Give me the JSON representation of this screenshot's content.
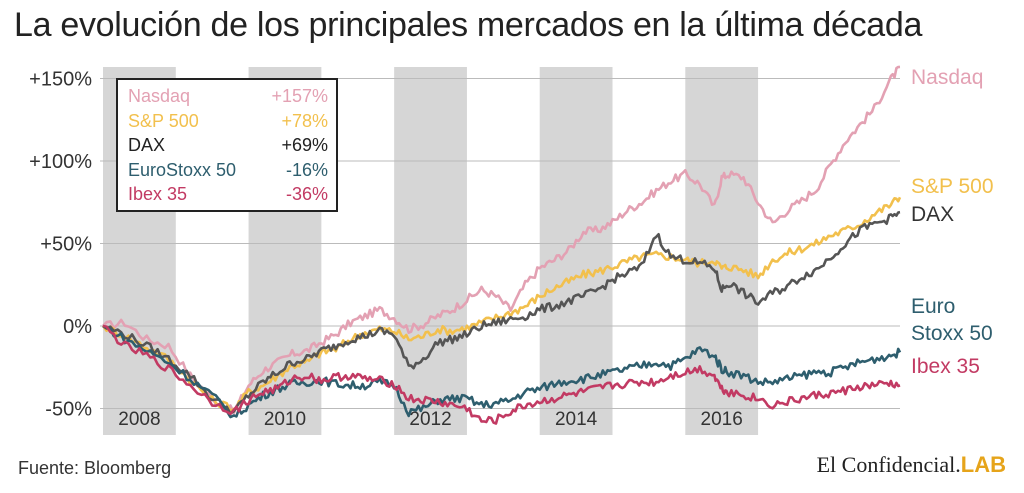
{
  "title": "La evolución de los principales mercados en la última década",
  "source": "Fuente: Bloomberg",
  "brand": {
    "name": "El Confidencial.",
    "suffix": "LAB"
  },
  "chart_data": {
    "type": "line",
    "ylim": [
      -60,
      160
    ],
    "yticks": [
      {
        "value": 150,
        "label": "+150%"
      },
      {
        "value": 100,
        "label": "+100%"
      },
      {
        "value": 50,
        "label": "+50%"
      },
      {
        "value": 0,
        "label": "0%"
      },
      {
        "value": -50,
        "label": "-50%"
      }
    ],
    "xlim": [
      2007.0,
      2017.95
    ],
    "year_bands": [
      {
        "label": "2008",
        "start": 2007.0,
        "end": 2008.0
      },
      {
        "label": "2010",
        "start": 2009.0,
        "end": 2010.0
      },
      {
        "label": "2012",
        "start": 2011.0,
        "end": 2012.0
      },
      {
        "label": "2014",
        "start": 2013.0,
        "end": 2014.0
      },
      {
        "label": "2016",
        "start": 2015.0,
        "end": 2016.0
      }
    ],
    "series": [
      {
        "name": "Nasdaq",
        "legend_value": "+157%",
        "color": "#e3a1b3",
        "x": [
          2007.0,
          2007.3,
          2007.6,
          2007.9,
          2008.2,
          2008.5,
          2008.8,
          2009.0,
          2009.2,
          2009.4,
          2009.6,
          2009.8,
          2010.0,
          2010.2,
          2010.4,
          2010.6,
          2010.8,
          2011.0,
          2011.2,
          2011.4,
          2011.6,
          2011.8,
          2012.0,
          2012.2,
          2012.4,
          2012.6,
          2012.8,
          2013.0,
          2013.2,
          2013.4,
          2013.6,
          2013.8,
          2014.0,
          2014.2,
          2014.4,
          2014.6,
          2014.8,
          2015.0,
          2015.2,
          2015.4,
          2015.5,
          2015.6,
          2015.8,
          2016.0,
          2016.2,
          2016.4,
          2016.6,
          2016.8,
          2017.0,
          2017.2,
          2017.4,
          2017.6,
          2017.8,
          2017.95
        ],
        "y": [
          0,
          2,
          -8,
          -12,
          -30,
          -44,
          -52,
          -36,
          -27,
          -22,
          -17,
          -15,
          -10,
          -5,
          2,
          6,
          10,
          5,
          -2,
          1,
          6,
          10,
          16,
          22,
          18,
          10,
          25,
          35,
          40,
          46,
          57,
          58,
          63,
          70,
          75,
          82,
          88,
          92,
          86,
          72,
          90,
          92,
          90,
          75,
          62,
          70,
          76,
          83,
          98,
          112,
          122,
          132,
          148,
          157
        ]
      },
      {
        "name": "S&P 500",
        "legend_value": "+78%",
        "color": "#f2c04d",
        "x": [
          2007.0,
          2007.3,
          2007.6,
          2007.9,
          2008.2,
          2008.5,
          2008.8,
          2009.0,
          2009.2,
          2009.4,
          2009.6,
          2009.8,
          2010.0,
          2010.2,
          2010.4,
          2010.6,
          2010.8,
          2011.0,
          2011.2,
          2011.4,
          2011.6,
          2011.8,
          2012.0,
          2012.2,
          2012.4,
          2012.6,
          2012.8,
          2013.0,
          2013.2,
          2013.4,
          2013.6,
          2013.8,
          2014.0,
          2014.2,
          2014.4,
          2014.6,
          2014.8,
          2015.0,
          2015.2,
          2015.4,
          2015.5,
          2015.6,
          2015.8,
          2016.0,
          2016.2,
          2016.4,
          2016.6,
          2016.8,
          2017.0,
          2017.2,
          2017.4,
          2017.6,
          2017.8,
          2017.95
        ],
        "y": [
          0,
          -6,
          -13,
          -20,
          -33,
          -45,
          -50,
          -40,
          -36,
          -30,
          -24,
          -22,
          -16,
          -14,
          -8,
          -4,
          -2,
          -3,
          -8,
          -6,
          -2,
          -3,
          -1,
          2,
          5,
          8,
          12,
          18,
          23,
          27,
          31,
          33,
          36,
          39,
          42,
          43,
          42,
          40,
          38,
          40,
          35,
          36,
          34,
          30,
          40,
          44,
          47,
          50,
          55,
          58,
          62,
          68,
          73,
          78
        ]
      },
      {
        "name": "DAX",
        "legend_value": "+69%",
        "color": "#555555",
        "x": [
          2007.0,
          2007.3,
          2007.6,
          2007.9,
          2008.2,
          2008.5,
          2008.8,
          2009.0,
          2009.2,
          2009.4,
          2009.6,
          2009.8,
          2010.0,
          2010.2,
          2010.4,
          2010.6,
          2010.8,
          2011.0,
          2011.2,
          2011.4,
          2011.6,
          2011.8,
          2012.0,
          2012.2,
          2012.4,
          2012.6,
          2012.8,
          2013.0,
          2013.2,
          2013.4,
          2013.6,
          2013.8,
          2014.0,
          2014.2,
          2014.4,
          2014.6,
          2014.8,
          2015.0,
          2015.2,
          2015.4,
          2015.5,
          2015.6,
          2015.8,
          2016.0,
          2016.2,
          2016.4,
          2016.6,
          2016.8,
          2017.0,
          2017.2,
          2017.4,
          2017.6,
          2017.8,
          2017.95
        ],
        "y": [
          0,
          -5,
          -12,
          -20,
          -30,
          -44,
          -52,
          -42,
          -34,
          -28,
          -22,
          -20,
          -15,
          -12,
          -8,
          -6,
          -3,
          -5,
          -25,
          -20,
          -10,
          -8,
          -5,
          0,
          2,
          4,
          6,
          10,
          12,
          15,
          18,
          22,
          28,
          32,
          36,
          56,
          42,
          40,
          38,
          35,
          22,
          26,
          20,
          14,
          20,
          24,
          30,
          34,
          42,
          50,
          58,
          62,
          65,
          69
        ]
      },
      {
        "name": "EuroStoxx 50",
        "legend_value": "-16%",
        "color": "#2e5e6e",
        "x": [
          2007.0,
          2007.3,
          2007.6,
          2007.9,
          2008.2,
          2008.5,
          2008.8,
          2009.0,
          2009.2,
          2009.4,
          2009.6,
          2009.8,
          2010.0,
          2010.2,
          2010.4,
          2010.6,
          2010.8,
          2011.0,
          2011.2,
          2011.4,
          2011.6,
          2011.8,
          2012.0,
          2012.2,
          2012.4,
          2012.6,
          2012.8,
          2013.0,
          2013.2,
          2013.4,
          2013.6,
          2013.8,
          2014.0,
          2014.2,
          2014.4,
          2014.6,
          2014.8,
          2015.0,
          2015.2,
          2015.4,
          2015.5,
          2015.6,
          2015.8,
          2016.0,
          2016.2,
          2016.4,
          2016.6,
          2016.8,
          2017.0,
          2017.2,
          2017.4,
          2017.6,
          2017.8,
          2017.95
        ],
        "y": [
          0,
          -8,
          -15,
          -22,
          -32,
          -42,
          -55,
          -48,
          -42,
          -38,
          -35,
          -34,
          -33,
          -35,
          -36,
          -36,
          -34,
          -36,
          -52,
          -50,
          -45,
          -44,
          -44,
          -48,
          -47,
          -45,
          -40,
          -38,
          -35,
          -33,
          -32,
          -30,
          -28,
          -26,
          -24,
          -22,
          -24,
          -20,
          -14,
          -18,
          -26,
          -28,
          -30,
          -34,
          -34,
          -32,
          -30,
          -28,
          -28,
          -25,
          -22,
          -20,
          -18,
          -16
        ]
      },
      {
        "name": "Ibex 35",
        "legend_value": "-36%",
        "color": "#c23a63",
        "x": [
          2007.0,
          2007.3,
          2007.6,
          2007.9,
          2008.2,
          2008.5,
          2008.8,
          2009.0,
          2009.2,
          2009.4,
          2009.6,
          2009.8,
          2010.0,
          2010.2,
          2010.4,
          2010.6,
          2010.8,
          2011.0,
          2011.2,
          2011.4,
          2011.6,
          2011.8,
          2012.0,
          2012.2,
          2012.4,
          2012.6,
          2012.8,
          2013.0,
          2013.2,
          2013.4,
          2013.6,
          2013.8,
          2014.0,
          2014.2,
          2014.4,
          2014.6,
          2014.8,
          2015.0,
          2015.2,
          2015.4,
          2015.5,
          2015.6,
          2015.8,
          2016.0,
          2016.2,
          2016.4,
          2016.6,
          2016.8,
          2017.0,
          2017.2,
          2017.4,
          2017.6,
          2017.8,
          2017.95
        ],
        "y": [
          0,
          -12,
          -18,
          -26,
          -36,
          -46,
          -52,
          -45,
          -40,
          -38,
          -32,
          -30,
          -33,
          -31,
          -30,
          -32,
          -33,
          -35,
          -44,
          -45,
          -46,
          -48,
          -50,
          -58,
          -57,
          -52,
          -48,
          -46,
          -44,
          -42,
          -40,
          -38,
          -36,
          -35,
          -34,
          -34,
          -30,
          -28,
          -26,
          -30,
          -38,
          -40,
          -42,
          -44,
          -48,
          -46,
          -44,
          -42,
          -41,
          -39,
          -37,
          -36,
          -35,
          -36
        ]
      }
    ],
    "end_labels": [
      {
        "text": "Nasdaq",
        "color": "#e3a1b3"
      },
      {
        "text": "S&P 500",
        "color": "#f2c04d"
      },
      {
        "text": "DAX",
        "color": "#333333"
      },
      {
        "text": "Euro",
        "color": "#2e5e6e"
      },
      {
        "text": "Stoxx 50",
        "color": "#2e5e6e"
      },
      {
        "text": "Ibex 35",
        "color": "#c23a63"
      }
    ]
  }
}
